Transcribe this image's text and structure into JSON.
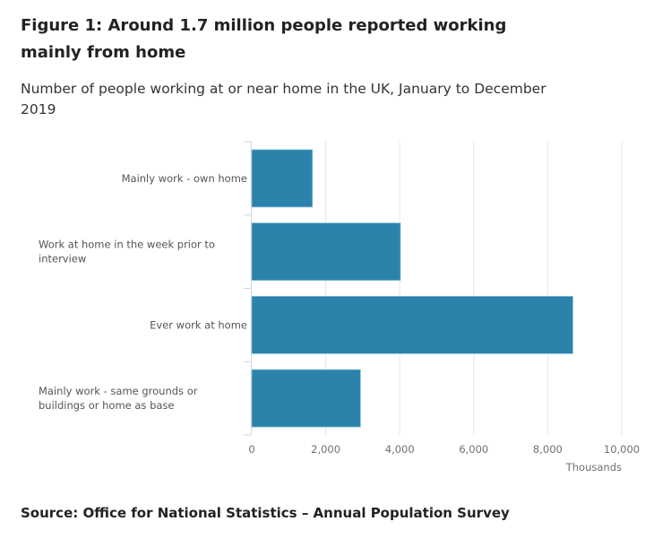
{
  "title": "Figure 1: Around 1.7 million people reported working mainly from home",
  "subtitle": "Number of people working at or near home in the UK, January to December 2019",
  "source": "Source: Office for National Statistics – Annual Population Survey",
  "chart_data": {
    "type": "bar",
    "orientation": "horizontal",
    "categories": [
      [
        "Mainly work - own home"
      ],
      [
        "Work at home in the week prior to",
        "interview"
      ],
      [
        "Ever work at home"
      ],
      [
        "Mainly work - same grounds or",
        "buildings or home as base"
      ]
    ],
    "values": [
      1640,
      4020,
      8680,
      2940
    ],
    "xlabel": "Thousands",
    "xlim": [
      0,
      10000
    ],
    "xticks": [
      0,
      2000,
      4000,
      6000,
      8000,
      10000
    ],
    "xtick_labels": [
      "0",
      "2,000",
      "4,000",
      "6,000",
      "8,000",
      "10,000"
    ],
    "grid": true,
    "color": "#2b83ab"
  }
}
